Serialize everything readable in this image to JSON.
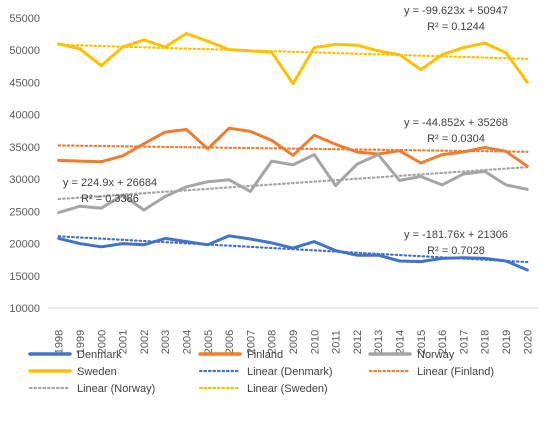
{
  "chart_data": {
    "type": "line",
    "title": "",
    "xlabel": "",
    "ylabel": "",
    "x": [
      "1998",
      "1999",
      "2000",
      "2001",
      "2002",
      "2003",
      "2004",
      "2005",
      "2006",
      "2007",
      "2008",
      "2009",
      "2010",
      "2011",
      "2012",
      "2013",
      "2014",
      "2015",
      "2016",
      "2017",
      "2018",
      "2019",
      "2020"
    ],
    "ylim": [
      10000,
      55000
    ],
    "yticks": [
      10000,
      15000,
      20000,
      25000,
      30000,
      35000,
      40000,
      45000,
      50000,
      55000
    ],
    "grid": false,
    "legend_position": "bottom",
    "series": [
      {
        "name": "Denmark",
        "color": "#4472c4",
        "values": [
          20800,
          20000,
          19500,
          20000,
          19800,
          20800,
          20300,
          19800,
          21200,
          20700,
          20100,
          19300,
          20300,
          18900,
          18200,
          18200,
          17300,
          17200,
          17700,
          17800,
          17700,
          17300,
          15900
        ]
      },
      {
        "name": "Finland",
        "color": "#ed7d31",
        "values": [
          32900,
          32800,
          32700,
          33600,
          35500,
          37300,
          37700,
          34700,
          37900,
          37400,
          36000,
          33700,
          36800,
          35400,
          34200,
          33900,
          34400,
          32500,
          33800,
          34200,
          34900,
          34300,
          32000
        ]
      },
      {
        "name": "Norway",
        "color": "#a5a5a5",
        "values": [
          24800,
          25800,
          25500,
          27500,
          25200,
          27300,
          28800,
          29600,
          29900,
          28100,
          32800,
          32200,
          33800,
          29000,
          32300,
          33800,
          29800,
          30400,
          29100,
          30800,
          31200,
          29100,
          28400
        ]
      },
      {
        "name": "Sweden",
        "color": "#ffc000",
        "values": [
          51000,
          50200,
          47600,
          50500,
          51600,
          50500,
          52600,
          51400,
          50100,
          49900,
          49700,
          44800,
          50400,
          50900,
          50800,
          49900,
          49300,
          47000,
          49300,
          50400,
          51100,
          49600,
          45000
        ]
      }
    ],
    "trendlines": [
      {
        "name": "Linear (Denmark)",
        "color": "#4472c4",
        "slope": -181.76,
        "intercept": 21306,
        "equation": "y = -181.76x + 21306",
        "r2": "R² = 0.7028"
      },
      {
        "name": "Linear (Finland)",
        "color": "#ed7d31",
        "slope": -44.852,
        "intercept": 35268,
        "equation": "y = -44.852x + 35268",
        "r2": "R² = 0.0304"
      },
      {
        "name": "Linear (Norway)",
        "color": "#a5a5a5",
        "slope": 224.9,
        "intercept": 26684,
        "equation": "y = 224.9x + 26684",
        "r2": "R² = 0.3386"
      },
      {
        "name": "Linear (Sweden)",
        "color": "#ffc000",
        "slope": -99.623,
        "intercept": 50947,
        "equation": "y = -99.623x + 50947",
        "r2": "R² = 0.1244"
      }
    ],
    "legend": [
      "Denmark",
      "Finland",
      "Norway",
      "Sweden",
      "Linear (Denmark)",
      "Linear (Finland)",
      "Linear (Norway)",
      "Linear (Sweden)"
    ]
  }
}
